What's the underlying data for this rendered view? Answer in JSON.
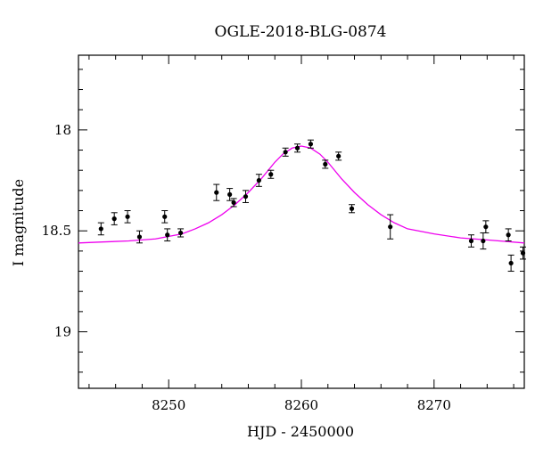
{
  "chart_data": {
    "type": "scatter",
    "title": "OGLE-2018-BLG-0874",
    "xlabel": "HJD - 2450000",
    "ylabel": "I magnitude",
    "xlim": [
      8243.2,
      8276.8
    ],
    "ylim": [
      18.8,
      18.3
    ],
    "ylim_note": "",
    "ylim_actual": [
      19.28,
      17.63
    ],
    "y_inverted": true,
    "x_ticks": [
      8250,
      8260,
      8270
    ],
    "x_tick_labels": [
      "8250",
      "8260",
      "8270"
    ],
    "y_ticks": [
      18,
      18.5,
      19
    ],
    "y_tick_labels": [
      "18",
      "18.5",
      "19"
    ],
    "x_minor_step": 2,
    "y_minor_step": 0.1,
    "grid": false,
    "legend": "none",
    "series": [
      {
        "kind": "points",
        "color": "#000000",
        "points": [
          {
            "x": 8244.9,
            "y": 18.49,
            "err": 0.03
          },
          {
            "x": 8245.9,
            "y": 18.44,
            "err": 0.03
          },
          {
            "x": 8246.9,
            "y": 18.43,
            "err": 0.03
          },
          {
            "x": 8247.8,
            "y": 18.53,
            "err": 0.03
          },
          {
            "x": 8249.7,
            "y": 18.43,
            "err": 0.03
          },
          {
            "x": 8249.9,
            "y": 18.52,
            "err": 0.03
          },
          {
            "x": 8250.9,
            "y": 18.51,
            "err": 0.02
          },
          {
            "x": 8253.6,
            "y": 18.31,
            "err": 0.04
          },
          {
            "x": 8254.6,
            "y": 18.32,
            "err": 0.03
          },
          {
            "x": 8254.9,
            "y": 18.36,
            "err": 0.02
          },
          {
            "x": 8255.8,
            "y": 18.33,
            "err": 0.03
          },
          {
            "x": 8256.8,
            "y": 18.25,
            "err": 0.03
          },
          {
            "x": 8257.7,
            "y": 18.22,
            "err": 0.02
          },
          {
            "x": 8258.8,
            "y": 18.11,
            "err": 0.02
          },
          {
            "x": 8259.7,
            "y": 18.09,
            "err": 0.02
          },
          {
            "x": 8260.7,
            "y": 18.07,
            "err": 0.02
          },
          {
            "x": 8261.8,
            "y": 18.17,
            "err": 0.02
          },
          {
            "x": 8262.8,
            "y": 18.13,
            "err": 0.02
          },
          {
            "x": 8263.8,
            "y": 18.39,
            "err": 0.02
          },
          {
            "x": 8266.7,
            "y": 18.48,
            "err": 0.06
          },
          {
            "x": 8272.8,
            "y": 18.55,
            "err": 0.03
          },
          {
            "x": 8273.7,
            "y": 18.55,
            "err": 0.04
          },
          {
            "x": 8273.9,
            "y": 18.48,
            "err": 0.03
          },
          {
            "x": 8275.6,
            "y": 18.52,
            "err": 0.03
          },
          {
            "x": 8275.8,
            "y": 18.66,
            "err": 0.04
          },
          {
            "x": 8276.7,
            "y": 18.61,
            "err": 0.03
          }
        ]
      },
      {
        "kind": "model",
        "color": "#ee00ee",
        "x": [
          8243.2,
          8245,
          8247,
          8249,
          8251,
          8252,
          8253,
          8254,
          8255,
          8256,
          8257,
          8258,
          8258.6,
          8259.3,
          8260,
          8260.7,
          8261.4,
          8262,
          8263,
          8264,
          8265,
          8266,
          8267,
          8268,
          8270,
          8272,
          8274,
          8276.8
        ],
        "y": [
          18.56,
          18.555,
          18.55,
          18.54,
          18.515,
          18.49,
          18.46,
          18.42,
          18.37,
          18.31,
          18.24,
          18.16,
          18.12,
          18.09,
          18.08,
          18.09,
          18.12,
          18.16,
          18.24,
          18.31,
          18.37,
          18.42,
          18.46,
          18.49,
          18.515,
          18.535,
          18.545,
          18.56
        ]
      }
    ]
  }
}
